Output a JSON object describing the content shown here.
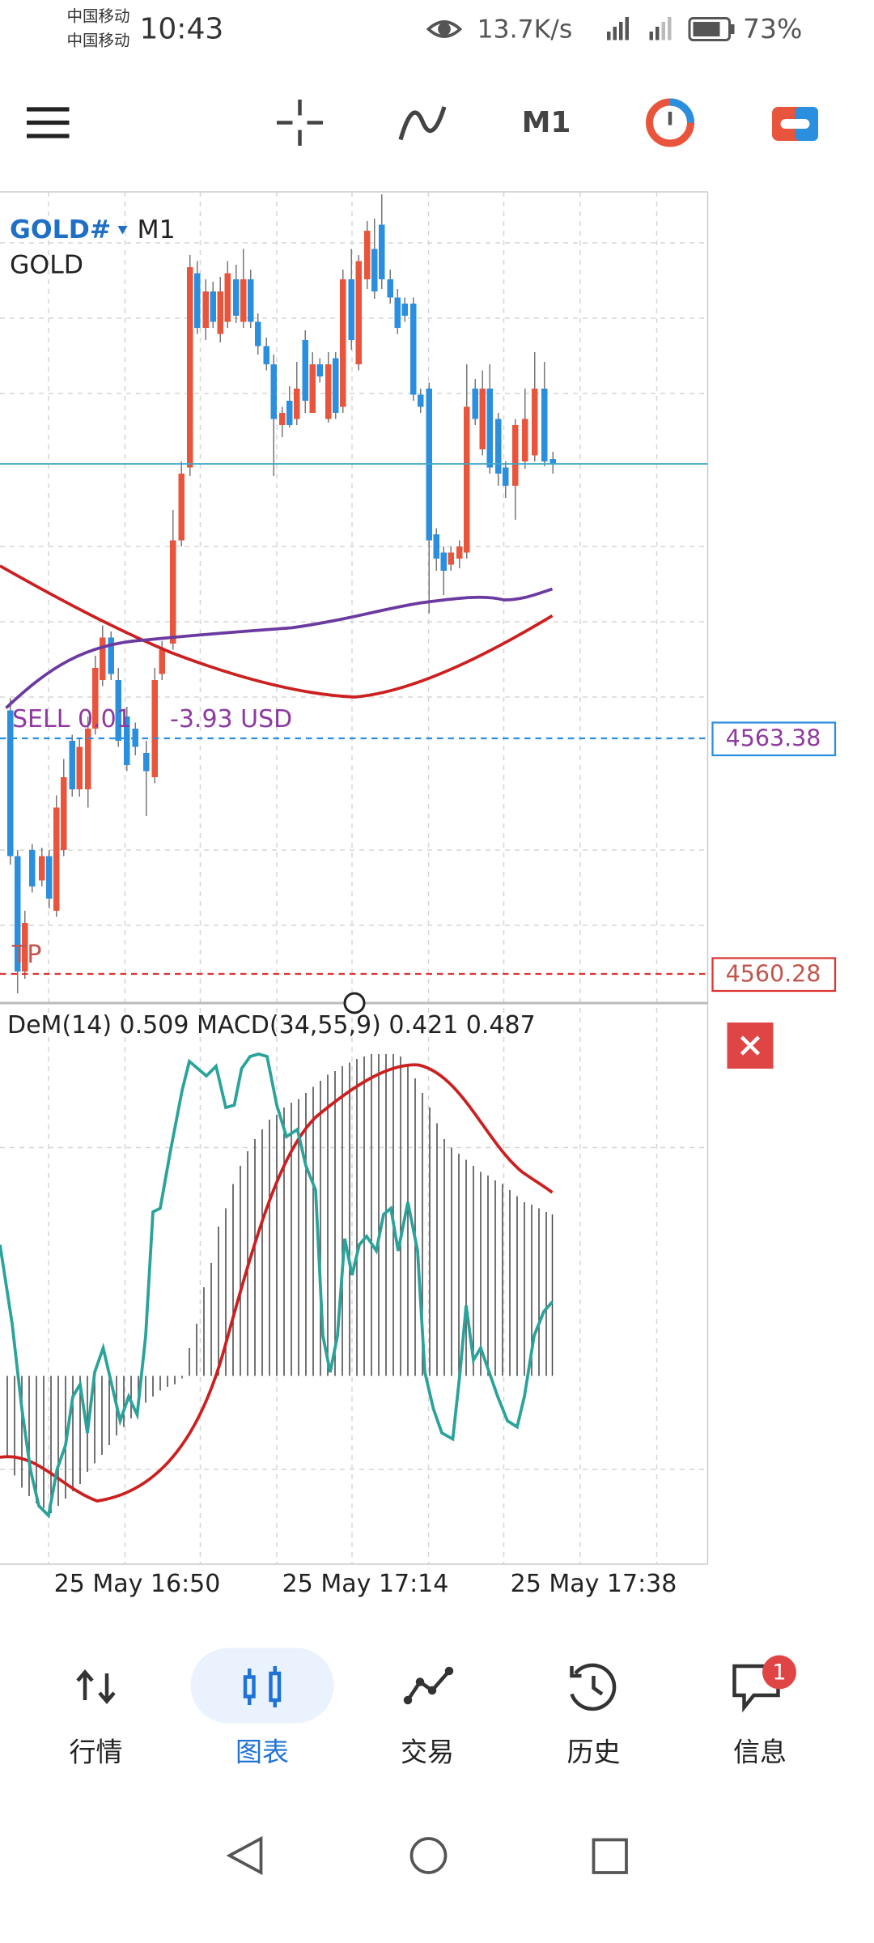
{
  "status_bar": {
    "carrier_1": "中国移动",
    "carrier_2": "中国移动",
    "time": "10:43",
    "speed": "13.7K/s",
    "battery": "73%"
  },
  "toolbar": {
    "timeframe": "M1"
  },
  "chart": {
    "symbol": "GOLD#",
    "timeframe": "M1",
    "description": "GOLD",
    "order": {
      "label": "SELL 0.01",
      "profit": "-3.93 USD",
      "price": "4563.38"
    },
    "tp": {
      "label": "TP",
      "price": "4560.28"
    },
    "indicator_label": "DeM(14) 0.509 MACD(34,55,9) 0.421 0.487",
    "time_labels": [
      "25 May 16:50",
      "25 May 17:14",
      "25 May 17:38"
    ]
  },
  "bottom_nav": {
    "items": [
      "行情",
      "图表",
      "交易",
      "历史",
      "信息"
    ],
    "badge": "1"
  }
}
